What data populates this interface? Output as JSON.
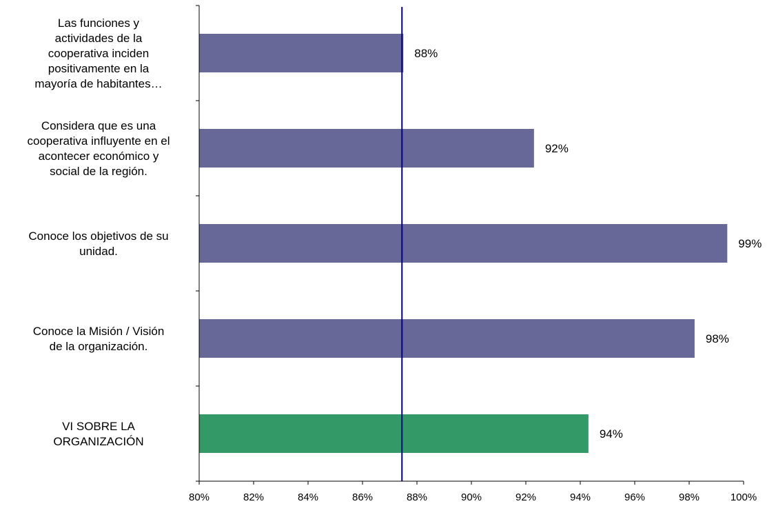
{
  "chart_data": {
    "type": "bar",
    "orientation": "horizontal",
    "categories": [
      [
        "Las funciones y",
        "actividades de la",
        "cooperativa inciden",
        "positivamente en la",
        "mayoría de habitantes…"
      ],
      [
        "Considera que es una",
        "cooperativa influyente en el",
        "acontecer económico y",
        "social de la región."
      ],
      [
        "Conoce los objetivos de su",
        "unidad."
      ],
      [
        "Conoce la Misión / Visión",
        "de la organización."
      ],
      [
        "VI SOBRE LA",
        "ORGANIZACIÓN"
      ]
    ],
    "values": [
      87.5,
      92.3,
      99.4,
      98.2,
      94.3
    ],
    "data_labels": [
      "88%",
      "92%",
      "99%",
      "98%",
      "94%"
    ],
    "bar_colors": [
      "#676798",
      "#676798",
      "#676798",
      "#676798",
      "#339966"
    ],
    "reference_line": 87.45,
    "reference_color": "#000080",
    "xlim": [
      80,
      100
    ],
    "x_ticks": [
      80,
      82,
      84,
      86,
      88,
      90,
      92,
      94,
      96,
      98,
      100
    ],
    "x_tick_labels": [
      "80%",
      "82%",
      "84%",
      "86%",
      "88%",
      "90%",
      "92%",
      "94%",
      "96%",
      "98%",
      "100%"
    ],
    "grid": false,
    "legend": "none"
  }
}
